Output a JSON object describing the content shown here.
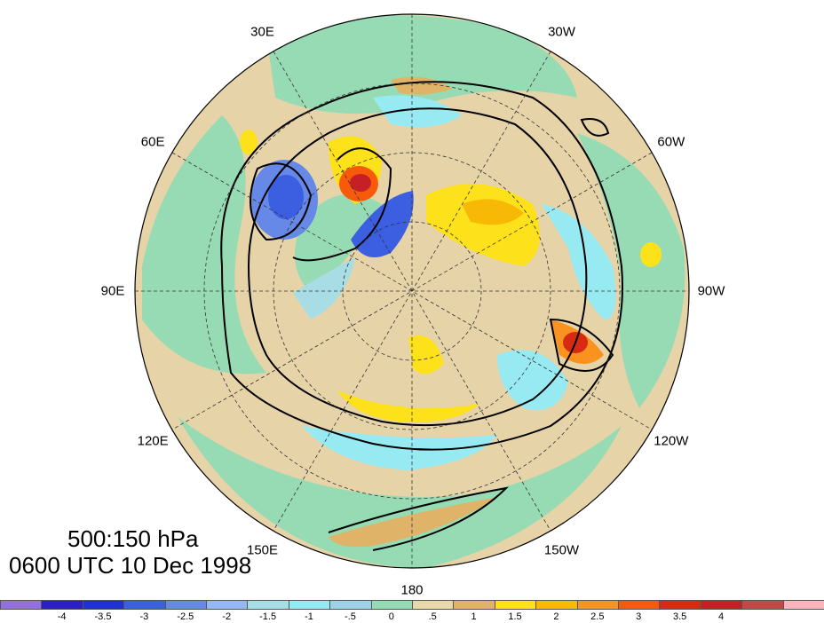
{
  "title": {
    "line1": "500:150 hPa",
    "line2": "0600 UTC 10 Dec 1998"
  },
  "map": {
    "projection": "north-polar-stereographic",
    "longitude_labels": [
      {
        "lon": 0,
        "text": "0"
      },
      {
        "lon": 30,
        "text": "30W"
      },
      {
        "lon": 60,
        "text": "60W"
      },
      {
        "lon": 90,
        "text": "90W"
      },
      {
        "lon": 120,
        "text": "120W"
      },
      {
        "lon": 150,
        "text": "150W"
      },
      {
        "lon": 180,
        "text": "180"
      },
      {
        "lon": 210,
        "text": "150E"
      },
      {
        "lon": 240,
        "text": "120E"
      },
      {
        "lon": 270,
        "text": "90E"
      },
      {
        "lon": 300,
        "text": "60E"
      },
      {
        "lon": 330,
        "text": "30E"
      }
    ],
    "colors": {
      "background_field": "#e6d3a8",
      "neutral_green": "#97dbb4"
    }
  },
  "colorbar": {
    "colors": [
      "#9370db",
      "#2b20c8",
      "#1f30d6",
      "#3b5fe0",
      "#6688e6",
      "#95b9ee",
      "#a9dde6",
      "#98eaf2",
      "#9ed0e8",
      "#97dbb4",
      "#ead8ad",
      "#e0b468",
      "#fde11a",
      "#f8b906",
      "#f9921e",
      "#f85a0c",
      "#d82a12",
      "#c62026",
      "#c44848",
      "#f7b6b9"
    ],
    "labels": [
      "-4",
      "-3.5",
      "-3",
      "-2.5",
      "-2",
      "-1.5",
      "-1",
      "-.5",
      "0",
      ".5",
      "1",
      "1.5",
      "2",
      "2.5",
      "3",
      "3.5",
      "4"
    ]
  }
}
